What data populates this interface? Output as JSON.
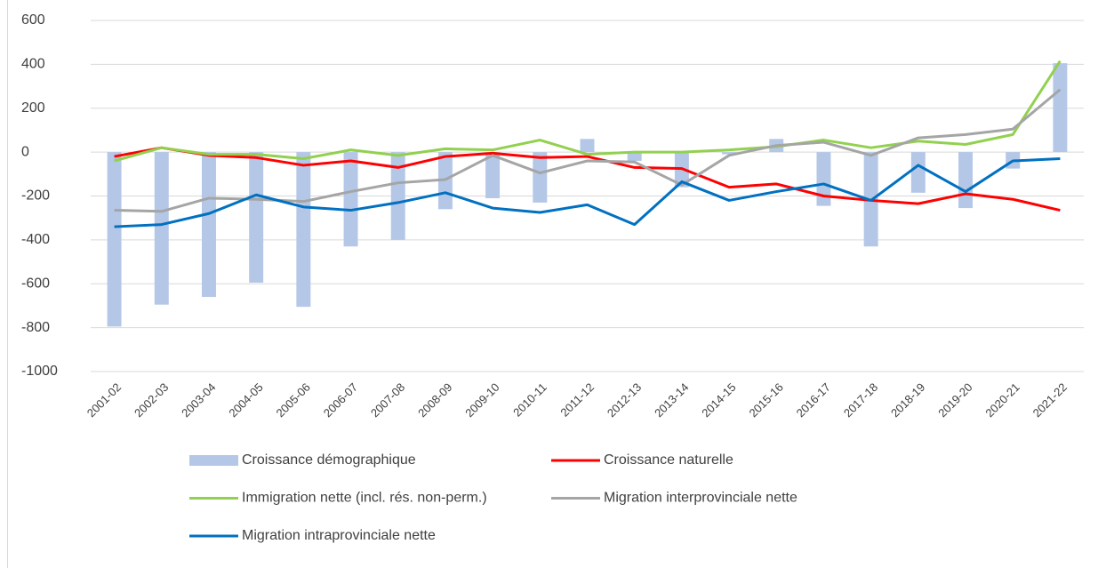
{
  "chart_data": {
    "type": "combo",
    "categories": [
      "2001-02",
      "2002-03",
      "2003-04",
      "2004-05",
      "2005-06",
      "2006-07",
      "2007-08",
      "2008-09",
      "2009-10",
      "2010-11",
      "2011-12",
      "2012-13",
      "2013-14",
      "2014-15",
      "2015-16",
      "2016-17",
      "2017-18",
      "2018-19",
      "2019-20",
      "2020-21",
      "2021-22"
    ],
    "ylim": [
      -1000,
      600
    ],
    "yticks": [
      -1000,
      -800,
      -600,
      -400,
      -200,
      0,
      200,
      400,
      600
    ],
    "grid": true,
    "series": [
      {
        "name": "Croissance démographique",
        "type": "bar",
        "color": "#b4c7e7",
        "values": [
          -795,
          -695,
          -660,
          -595,
          -705,
          -430,
          -400,
          -260,
          -210,
          -230,
          60,
          -40,
          -160,
          -10,
          60,
          -245,
          -430,
          -185,
          -255,
          -75,
          405
        ]
      },
      {
        "name": "Croissance naturelle",
        "type": "line",
        "color": "#ff0000",
        "values": [
          -20,
          20,
          -15,
          -25,
          -60,
          -40,
          -70,
          -20,
          -5,
          -25,
          -20,
          -70,
          -75,
          -160,
          -145,
          -200,
          -220,
          -235,
          -190,
          -215,
          -265
        ]
      },
      {
        "name": "Immigration nette (incl. rés. non-perm.)",
        "type": "line",
        "color": "#92d050",
        "values": [
          -40,
          20,
          -10,
          -10,
          -30,
          10,
          -15,
          15,
          10,
          55,
          -10,
          0,
          0,
          10,
          25,
          55,
          20,
          50,
          35,
          80,
          415
        ]
      },
      {
        "name": "Migration interprovinciale nette",
        "type": "line",
        "color": "#a5a5a5",
        "values": [
          -265,
          -270,
          -210,
          -215,
          -225,
          -180,
          -140,
          -125,
          -15,
          -95,
          -40,
          -45,
          -150,
          -15,
          30,
          45,
          -15,
          65,
          80,
          105,
          285
        ]
      },
      {
        "name": "Migration intraprovinciale nette",
        "type": "line",
        "color": "#0070c0",
        "values": [
          -340,
          -330,
          -280,
          -195,
          -250,
          -265,
          -230,
          -185,
          -255,
          -275,
          -240,
          -330,
          -135,
          -220,
          -180,
          -145,
          -220,
          -60,
          -180,
          -40,
          -30
        ]
      }
    ]
  }
}
